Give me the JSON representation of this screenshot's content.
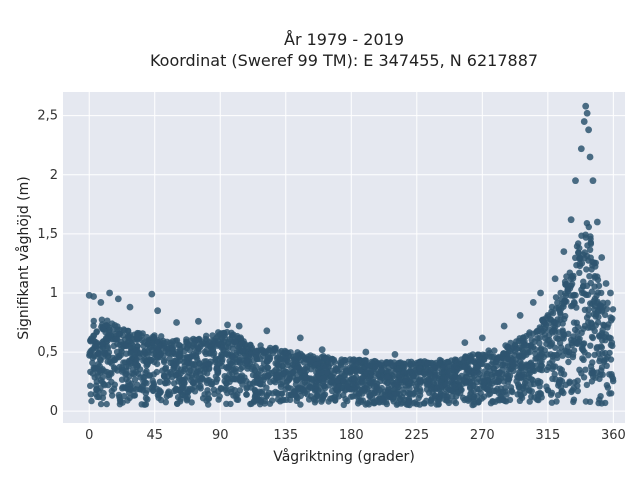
{
  "chart_data": {
    "type": "scatter",
    "title_line1": "År 1979 - 2019",
    "title_line2": "Koordinat (Sweref 99 TM): E 347455, N 6217887",
    "xlabel": "Vågriktning (grader)",
    "ylabel": "Signifikant våghöjd (m)",
    "xlim": [
      -18,
      368
    ],
    "ylim": [
      -0.1,
      2.7
    ],
    "xticks": [
      0,
      45,
      90,
      135,
      180,
      225,
      270,
      315,
      360
    ],
    "xtick_labels": [
      "0",
      "45",
      "90",
      "135",
      "180",
      "225",
      "270",
      "315",
      "360"
    ],
    "yticks": [
      0,
      0.5,
      1,
      1.5,
      2,
      2.5
    ],
    "ytick_labels": [
      "0",
      "0,5",
      "1",
      "1,5",
      "2",
      "2,5"
    ],
    "grid": true,
    "colors": {
      "marker": "#2e5570",
      "plot_background": "#e5e8f0",
      "grid": "#ffffff"
    },
    "envelope": {
      "direction": [
        0,
        10,
        20,
        30,
        45,
        60,
        75,
        90,
        100,
        110,
        125,
        135,
        150,
        165,
        180,
        200,
        225,
        250,
        270,
        285,
        300,
        310,
        320,
        330,
        335,
        340,
        345,
        350,
        355,
        360
      ],
      "typical_max_height": [
        0.8,
        0.78,
        0.72,
        0.68,
        0.65,
        0.6,
        0.62,
        0.68,
        0.66,
        0.58,
        0.55,
        0.52,
        0.48,
        0.46,
        0.44,
        0.42,
        0.42,
        0.44,
        0.5,
        0.55,
        0.65,
        0.75,
        0.95,
        1.2,
        1.45,
        1.7,
        1.5,
        1.1,
        0.95,
        0.9
      ],
      "min_height": [
        0.05,
        0.05,
        0.05,
        0.05,
        0.05,
        0.05,
        0.05,
        0.05,
        0.05,
        0.05,
        0.05,
        0.05,
        0.05,
        0.05,
        0.05,
        0.05,
        0.05,
        0.05,
        0.05,
        0.05,
        0.05,
        0.05,
        0.05,
        0.05,
        0.05,
        0.05,
        0.05,
        0.05,
        0.05,
        0.05
      ]
    },
    "outliers": [
      {
        "x": 0,
        "y": 0.98
      },
      {
        "x": 3,
        "y": 0.97
      },
      {
        "x": 8,
        "y": 0.92
      },
      {
        "x": 14,
        "y": 1.0
      },
      {
        "x": 20,
        "y": 0.95
      },
      {
        "x": 28,
        "y": 0.88
      },
      {
        "x": 43,
        "y": 0.99
      },
      {
        "x": 47,
        "y": 0.85
      },
      {
        "x": 60,
        "y": 0.75
      },
      {
        "x": 75,
        "y": 0.76
      },
      {
        "x": 95,
        "y": 0.73
      },
      {
        "x": 103,
        "y": 0.72
      },
      {
        "x": 122,
        "y": 0.68
      },
      {
        "x": 145,
        "y": 0.62
      },
      {
        "x": 160,
        "y": 0.52
      },
      {
        "x": 190,
        "y": 0.5
      },
      {
        "x": 210,
        "y": 0.48
      },
      {
        "x": 258,
        "y": 0.58
      },
      {
        "x": 270,
        "y": 0.62
      },
      {
        "x": 285,
        "y": 0.72
      },
      {
        "x": 296,
        "y": 0.81
      },
      {
        "x": 305,
        "y": 0.92
      },
      {
        "x": 310,
        "y": 1.0
      },
      {
        "x": 320,
        "y": 1.12
      },
      {
        "x": 326,
        "y": 1.35
      },
      {
        "x": 331,
        "y": 1.62
      },
      {
        "x": 334,
        "y": 1.95
      },
      {
        "x": 338,
        "y": 2.22
      },
      {
        "x": 340,
        "y": 2.45
      },
      {
        "x": 341,
        "y": 2.58
      },
      {
        "x": 342,
        "y": 2.52
      },
      {
        "x": 343,
        "y": 2.38
      },
      {
        "x": 344,
        "y": 2.15
      },
      {
        "x": 346,
        "y": 1.95
      },
      {
        "x": 349,
        "y": 1.6
      },
      {
        "x": 352,
        "y": 1.3
      },
      {
        "x": 355,
        "y": 1.08
      },
      {
        "x": 358,
        "y": 1.0
      }
    ]
  }
}
